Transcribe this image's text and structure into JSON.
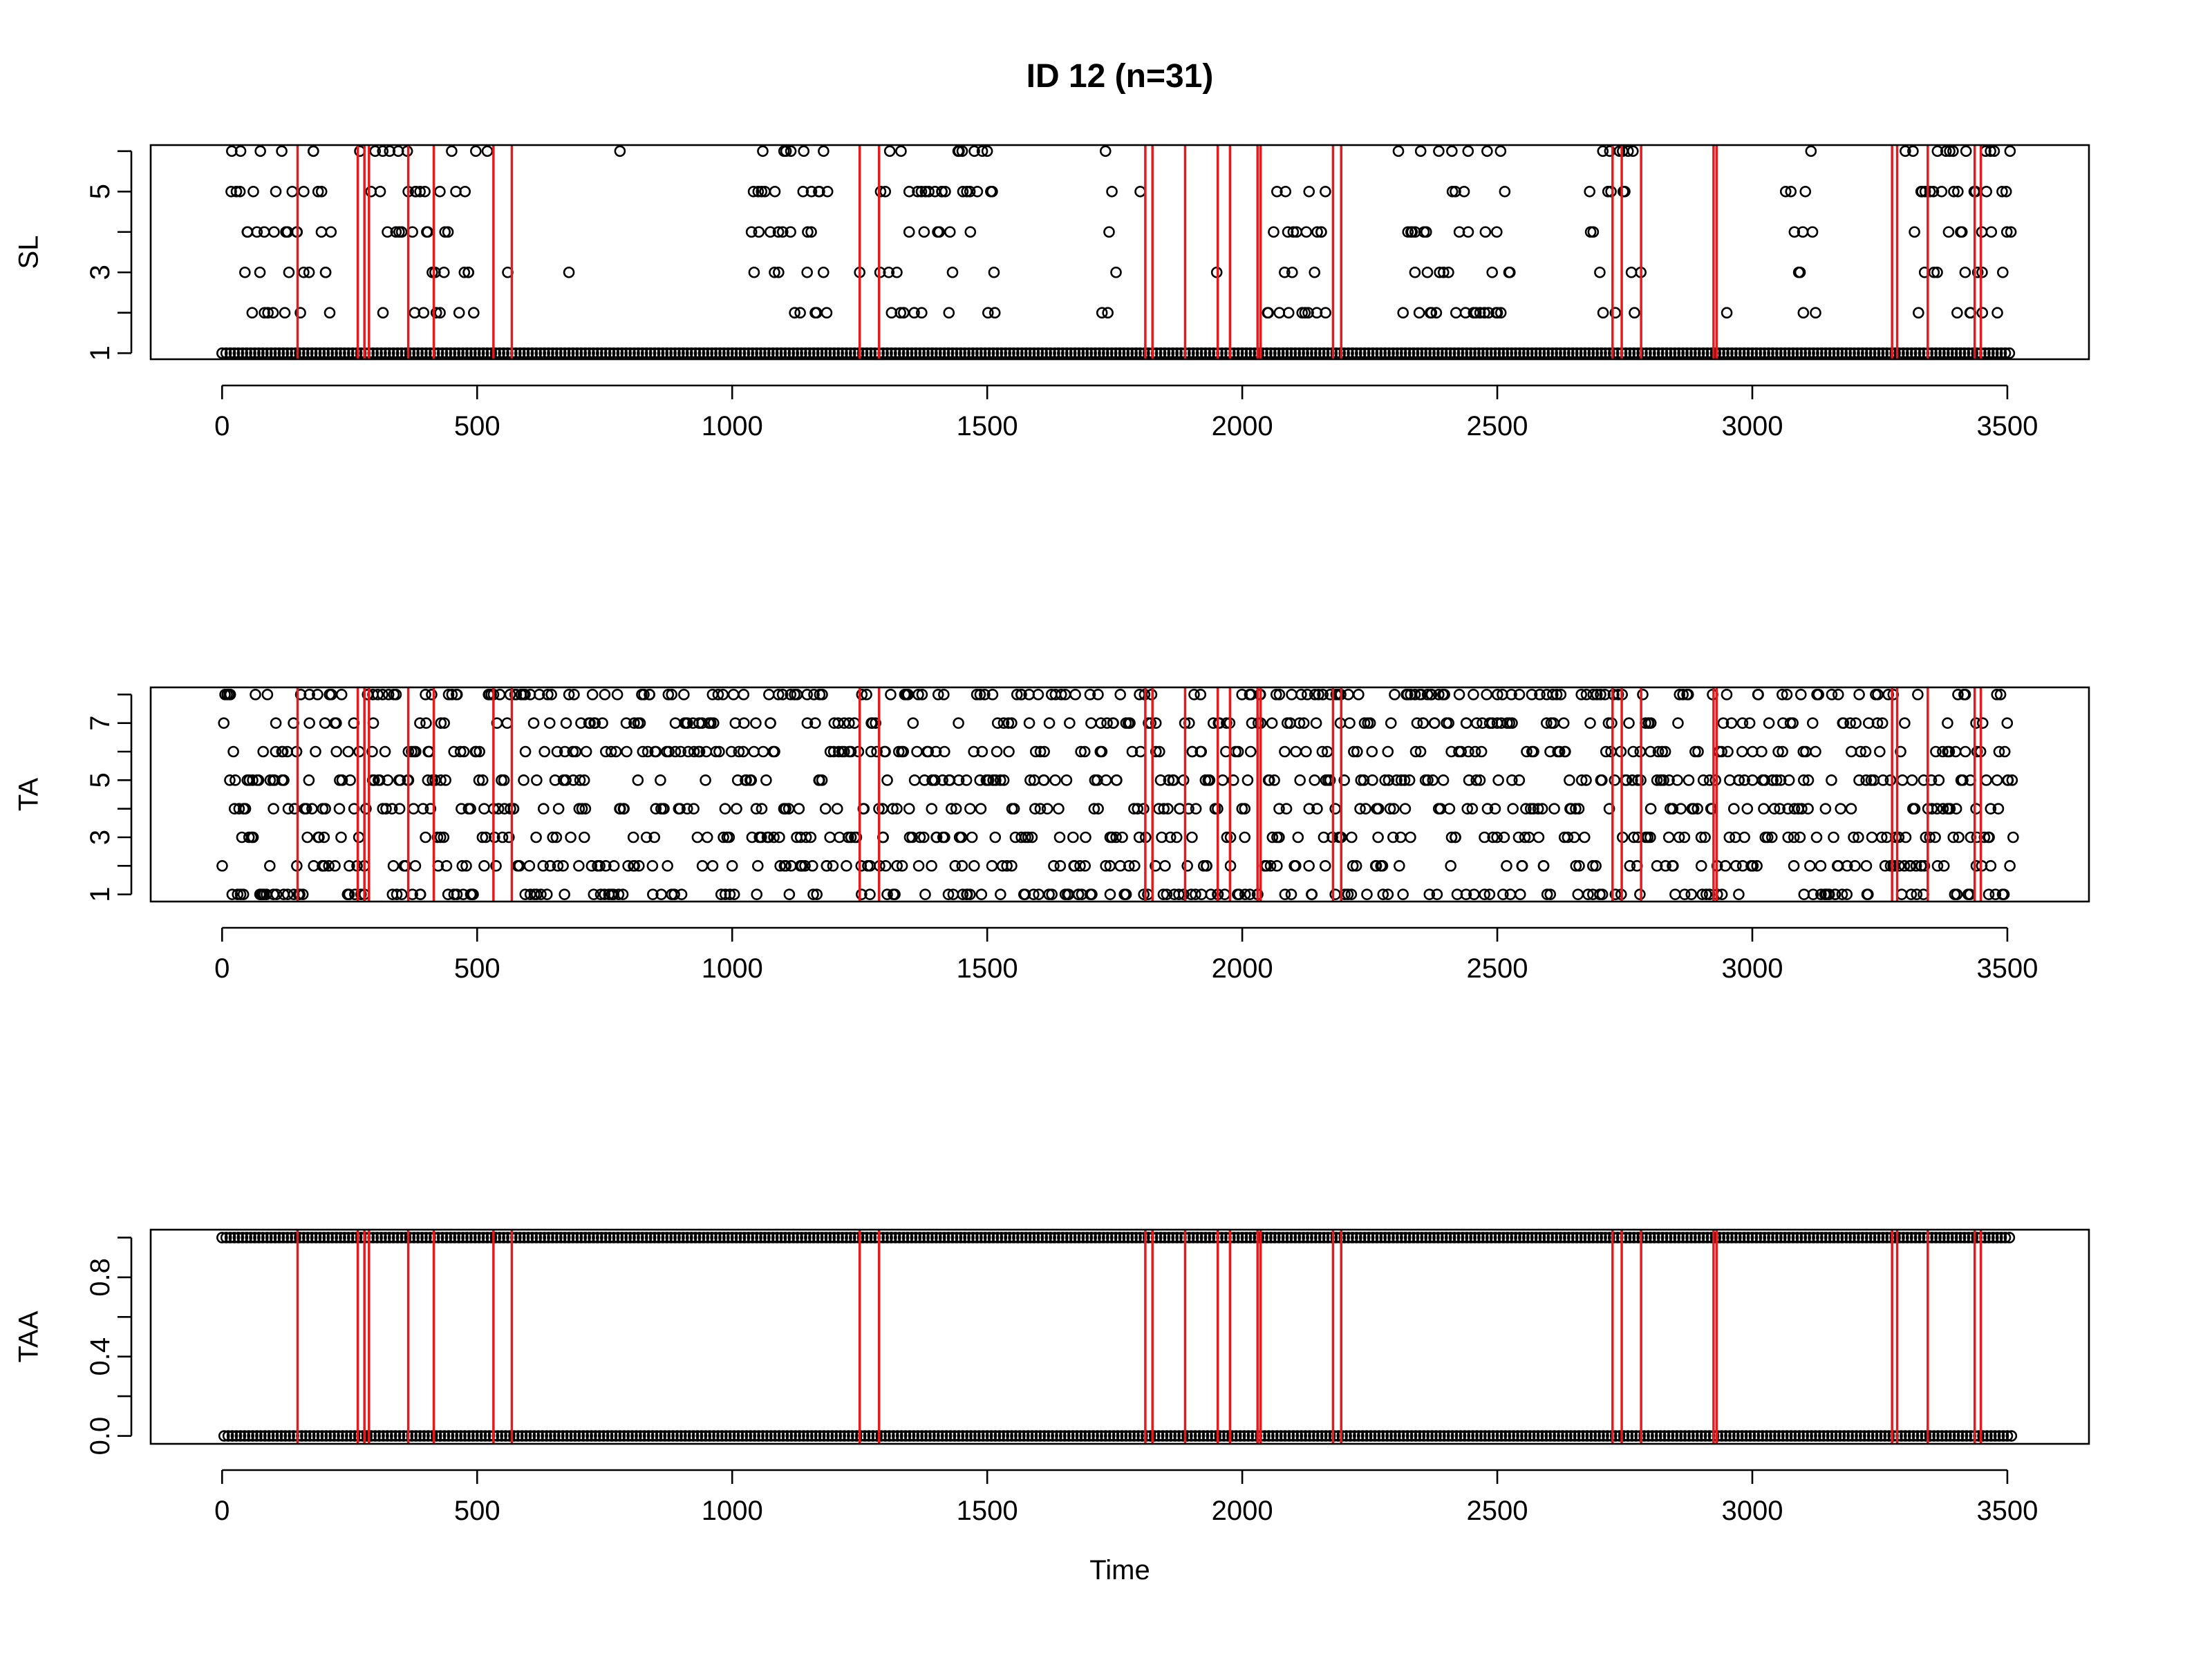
{
  "title": "ID 12 (n=31)",
  "xlabel": "Time",
  "colors": {
    "points": "#000000",
    "changepoints": "#e41a1c",
    "frame": "#000000"
  },
  "chart_data": [
    {
      "type": "scatter",
      "ylabel": "SL",
      "xlim": [
        -140,
        3660
      ],
      "ylim": [
        0.85,
        6.15
      ],
      "x_ticks": [
        0,
        500,
        1000,
        1500,
        2000,
        2500,
        3000,
        3500
      ],
      "x_tick_labels": [
        "0",
        "500",
        "1000",
        "1500",
        "2000",
        "2500",
        "3000",
        "3500"
      ],
      "y_ticks": [
        1,
        2,
        3,
        4,
        5,
        6
      ],
      "y_tick_labels": [
        "1",
        "",
        "3",
        "",
        "5",
        ""
      ],
      "x_range": [
        0,
        3510
      ],
      "y_levels": [
        1,
        2,
        3,
        4,
        5,
        6
      ],
      "marker": "open-circle",
      "point_description": "Step-length state (1-6) at each time step; state 1 occurs almost continuously, higher states appear in bursts.",
      "sample_points": [
        {
          "x": 50,
          "y": 4
        },
        {
          "x": 100,
          "y": 2
        },
        {
          "x": 160,
          "y": 3
        },
        {
          "x": 270,
          "y": 6
        },
        {
          "x": 380,
          "y": 5
        },
        {
          "x": 420,
          "y": 2
        },
        {
          "x": 520,
          "y": 6
        },
        {
          "x": 560,
          "y": 3
        },
        {
          "x": 680,
          "y": 3
        },
        {
          "x": 780,
          "y": 6
        },
        {
          "x": 1060,
          "y": 6
        },
        {
          "x": 1250,
          "y": 3
        },
        {
          "x": 1500,
          "y": 6
        },
        {
          "x": 1800,
          "y": 5
        },
        {
          "x": 1950,
          "y": 3
        },
        {
          "x": 2100,
          "y": 4
        },
        {
          "x": 2500,
          "y": 2
        },
        {
          "x": 2750,
          "y": 5
        },
        {
          "x": 2950,
          "y": 2
        },
        {
          "x": 3300,
          "y": 6
        },
        {
          "x": 3450,
          "y": 4
        }
      ]
    },
    {
      "type": "scatter",
      "ylabel": "TA",
      "xlim": [
        -140,
        3660
      ],
      "ylim": [
        0.75,
        8.25
      ],
      "x_ticks": [
        0,
        500,
        1000,
        1500,
        2000,
        2500,
        3000,
        3500
      ],
      "x_tick_labels": [
        "0",
        "500",
        "1000",
        "1500",
        "2000",
        "2500",
        "3000",
        "3500"
      ],
      "y_ticks": [
        1,
        2,
        3,
        4,
        5,
        6,
        7,
        8
      ],
      "y_tick_labels": [
        "1",
        "",
        "3",
        "",
        "5",
        "",
        "7",
        ""
      ],
      "x_range": [
        0,
        3510
      ],
      "y_levels": [
        1,
        2,
        3,
        4,
        5,
        6,
        7,
        8
      ],
      "marker": "open-circle",
      "point_description": "Turning-angle state (1-8) at each time step; all eight levels are densely populated throughout the series.",
      "sample_points": [
        {
          "x": 10,
          "y": 8
        },
        {
          "x": 100,
          "y": 5
        },
        {
          "x": 200,
          "y": 3
        },
        {
          "x": 400,
          "y": 7
        },
        {
          "x": 700,
          "y": 4
        },
        {
          "x": 1000,
          "y": 2
        },
        {
          "x": 1300,
          "y": 6
        },
        {
          "x": 1600,
          "y": 8
        },
        {
          "x": 1900,
          "y": 1
        },
        {
          "x": 2200,
          "y": 5
        },
        {
          "x": 2500,
          "y": 7
        },
        {
          "x": 2800,
          "y": 3
        },
        {
          "x": 3100,
          "y": 6
        },
        {
          "x": 3400,
          "y": 4
        }
      ]
    },
    {
      "type": "scatter",
      "ylabel": "TAA",
      "xlim": [
        -140,
        3660
      ],
      "ylim": [
        -0.04,
        1.04
      ],
      "x_ticks": [
        0,
        500,
        1000,
        1500,
        2000,
        2500,
        3000,
        3500
      ],
      "x_tick_labels": [
        "0",
        "500",
        "1000",
        "1500",
        "2000",
        "2500",
        "3000",
        "3500"
      ],
      "y_ticks": [
        0,
        0.2,
        0.4,
        0.6,
        0.8,
        1.0
      ],
      "y_tick_labels": [
        "0.0",
        "",
        "0.4",
        "",
        "0.8",
        ""
      ],
      "x_range": [
        0,
        3510
      ],
      "y_levels": [
        0,
        1
      ],
      "marker": "open-circle",
      "point_description": "Binary indicator (0 or 1) observed continuously across the whole time range."
    }
  ],
  "changepoints": [
    148,
    266,
    279,
    288,
    365,
    415,
    532,
    568,
    1250,
    1288,
    1810,
    1824,
    1888,
    1952,
    1976,
    2030,
    2036,
    2178,
    2194,
    2726,
    2744,
    2782,
    2924,
    2930,
    3274,
    3284,
    3344,
    3436,
    3448
  ]
}
